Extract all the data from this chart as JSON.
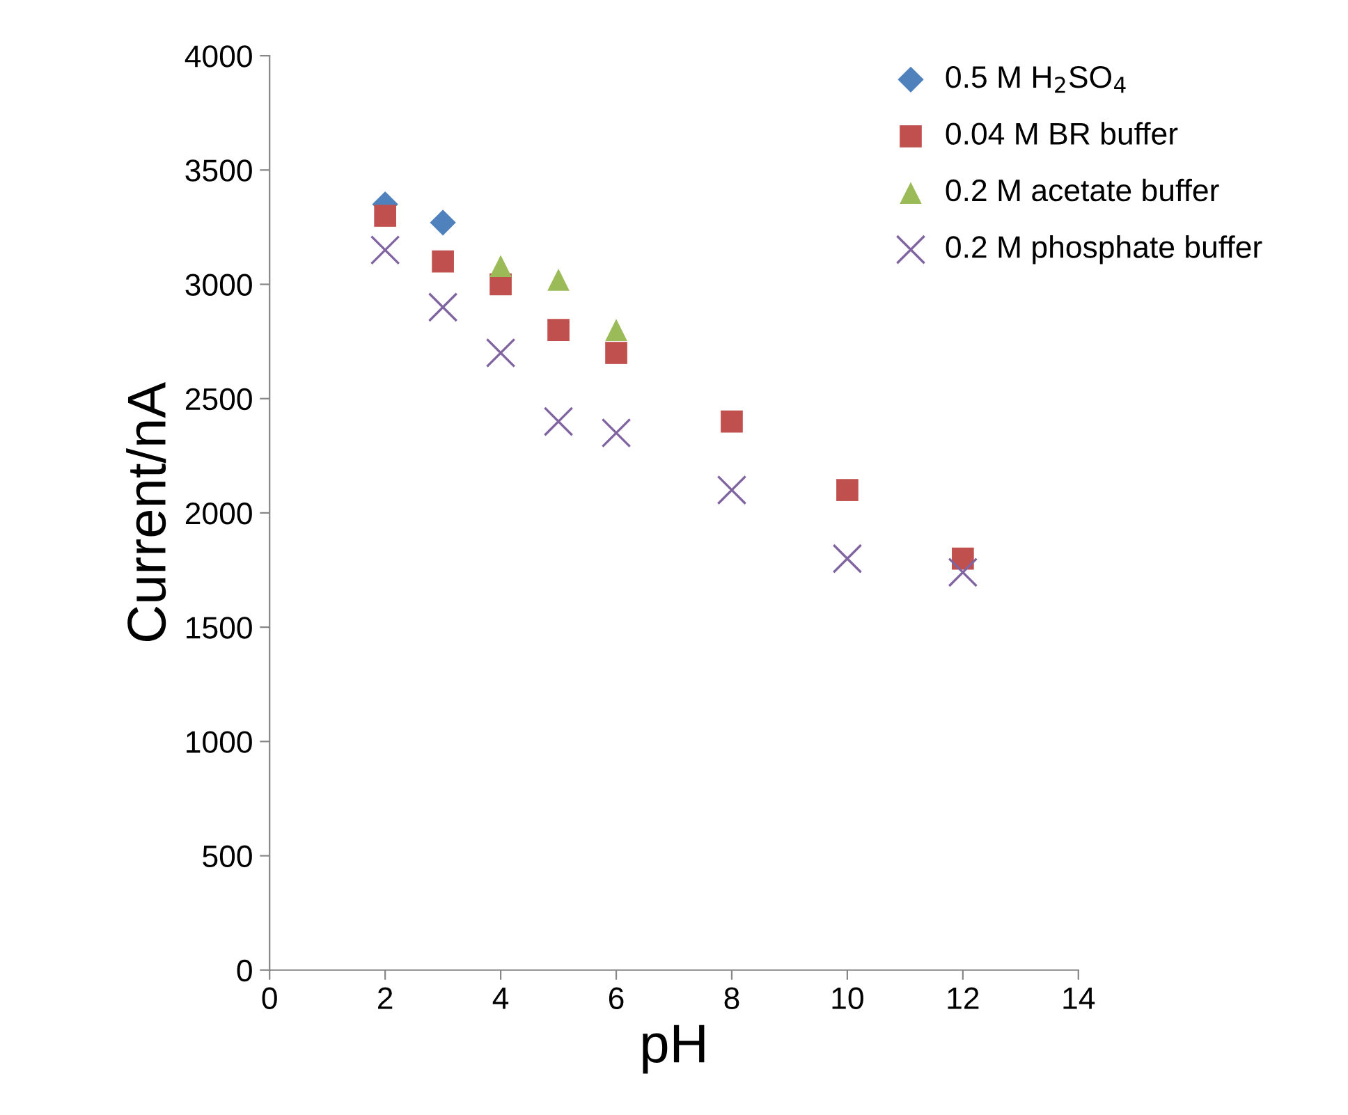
{
  "chart_data": {
    "type": "scatter",
    "xlabel": "pH",
    "ylabel": "Current/nA",
    "xlim": [
      0,
      14
    ],
    "xticks": [
      0,
      2,
      4,
      6,
      8,
      10,
      12,
      14
    ],
    "ylim": [
      0,
      4000
    ],
    "yticks": [
      0,
      500,
      1000,
      1500,
      2000,
      2500,
      3000,
      3500,
      4000
    ],
    "grid": false,
    "legend": "top right",
    "series": [
      {
        "name": "0.5 M H$_{2}$SO$_{4}$",
        "color": "#4f81bd",
        "marker": "diamond",
        "x": [
          2,
          3
        ],
        "values": [
          3350,
          3270
        ]
      },
      {
        "name": "0.04 M BR buffer",
        "color": "#c0504d",
        "marker": "square",
        "x": [
          2,
          3,
          4,
          5,
          6,
          8,
          10,
          12
        ],
        "values": [
          3300,
          3100,
          3000,
          2800,
          2700,
          2400,
          2100,
          1800
        ]
      },
      {
        "name": "0.2 M acetate buffer",
        "color": "#9bbb59",
        "marker": "triangle",
        "x": [
          4,
          5,
          6
        ],
        "values": [
          3080,
          3020,
          2800
        ]
      },
      {
        "name": "0.2 M phosphate buffer",
        "color": "#8064a2",
        "marker": "cross",
        "x": [
          2,
          3,
          4,
          5,
          6,
          8,
          10,
          12
        ],
        "values": [
          3150,
          2900,
          2700,
          2400,
          2350,
          2100,
          1800,
          1740
        ]
      }
    ]
  }
}
